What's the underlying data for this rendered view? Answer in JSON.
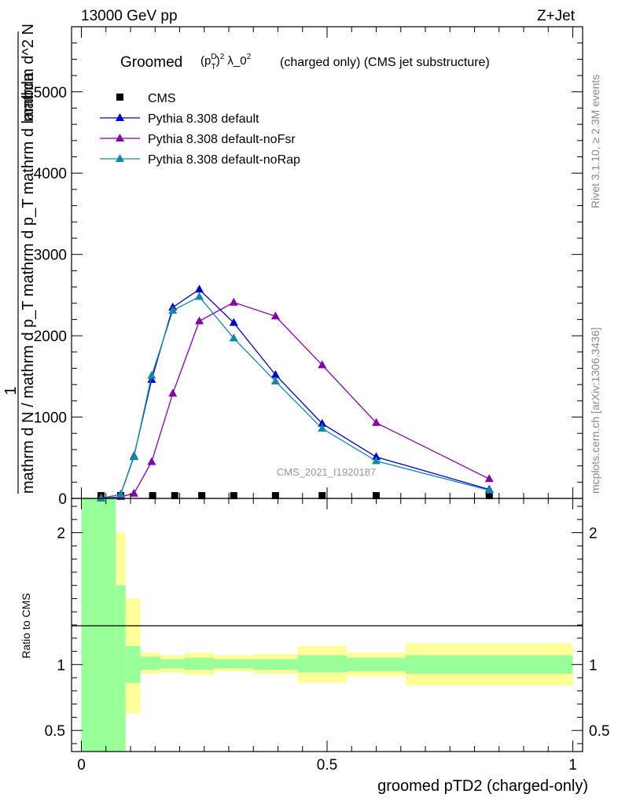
{
  "header": {
    "energy": "13000 GeV pp",
    "process": "Z+Jet"
  },
  "title": {
    "prefix": "Groomed",
    "suffix": "(charged only) (CMS jet substructure)"
  },
  "side_labels": {
    "rivet": "Rivet 3.1.10, ≥ 2.3M events",
    "mcplots": "mcplots.cern.ch [arXiv:1306.3436]"
  },
  "analysis_label": "CMS_2021_I1920187",
  "ylabel_main": {
    "numerator": "1",
    "denominator": "mathrm d N / mathrm d p_T mathrm d p_T mathrm d lambda",
    "top": "mathrm d^2 N"
  },
  "ylabel_ratio": "Ratio to CMS",
  "xlabel": "groomed pTD2 (charged-only)",
  "colors": {
    "cms": "#000000",
    "default": "#0000cc",
    "noFsr": "#8800aa",
    "noRap": "#1188aa",
    "band_inner": "#99ff99",
    "band_outer": "#ffff99"
  },
  "chart_data": [
    {
      "type": "line",
      "panel": "main",
      "ylim": [
        0,
        5800
      ],
      "xlim": [
        -0.02,
        1.02
      ],
      "yticks": [
        0,
        1000,
        2000,
        3000,
        4000,
        5000
      ],
      "yticklabels": [
        "0",
        "1000",
        "2000",
        "3000",
        "4000",
        "5000"
      ],
      "series": [
        {
          "name": "CMS",
          "marker": "square",
          "x": [
            0.04,
            0.08,
            0.145,
            0.19,
            0.245,
            0.31,
            0.395,
            0.49,
            0.6,
            0.83
          ],
          "y": [
            0,
            0,
            0,
            0,
            0,
            0,
            0,
            0,
            0,
            0
          ]
        },
        {
          "name": "Pythia 8.308 default",
          "marker": "triangle",
          "x": [
            0.04,
            0.08,
            0.107,
            0.143,
            0.186,
            0.24,
            0.31,
            0.395,
            0.49,
            0.6,
            0.83
          ],
          "y": [
            0,
            50,
            520,
            1460,
            2350,
            2570,
            2160,
            1520,
            920,
            510,
            110
          ]
        },
        {
          "name": "Pythia 8.308 default-noFsr",
          "marker": "triangle",
          "x": [
            0.04,
            0.08,
            0.107,
            0.143,
            0.186,
            0.24,
            0.31,
            0.395,
            0.49,
            0.6,
            0.83
          ],
          "y": [
            0,
            20,
            60,
            450,
            1290,
            2180,
            2410,
            2240,
            1640,
            930,
            240
          ]
        },
        {
          "name": "Pythia 8.308 default-noRap",
          "marker": "triangle",
          "x": [
            0.04,
            0.08,
            0.107,
            0.143,
            0.186,
            0.24,
            0.31,
            0.395,
            0.49,
            0.6,
            0.83
          ],
          "y": [
            0,
            50,
            510,
            1510,
            2310,
            2480,
            1970,
            1440,
            860,
            460,
            100
          ]
        }
      ]
    },
    {
      "type": "area",
      "panel": "ratio",
      "ylim": [
        0.34,
        2.26
      ],
      "yticks": [
        0.5,
        1,
        2
      ],
      "yticklabels": [
        "0.5",
        "1",
        "2"
      ],
      "xticks": [
        0,
        0.5,
        1
      ],
      "xticklabels": [
        "0",
        "0.5",
        "1"
      ],
      "bins": [
        {
          "x0": 0.0,
          "x1": 0.07,
          "inner": [
            0.34,
            2.26
          ],
          "outer": [
            0.34,
            2.26
          ]
        },
        {
          "x0": 0.07,
          "x1": 0.09,
          "inner": [
            0.34,
            1.6
          ],
          "outer": [
            0.34,
            2.0
          ]
        },
        {
          "x0": 0.09,
          "x1": 0.12,
          "inner": [
            0.86,
            1.14
          ],
          "outer": [
            0.63,
            1.5
          ]
        },
        {
          "x0": 0.12,
          "x1": 0.16,
          "inner": [
            0.96,
            1.06
          ],
          "outer": [
            0.93,
            1.09
          ]
        },
        {
          "x0": 0.16,
          "x1": 0.21,
          "inner": [
            0.97,
            1.04
          ],
          "outer": [
            0.94,
            1.07
          ]
        },
        {
          "x0": 0.21,
          "x1": 0.27,
          "inner": [
            0.96,
            1.05
          ],
          "outer": [
            0.92,
            1.09
          ]
        },
        {
          "x0": 0.27,
          "x1": 0.35,
          "inner": [
            0.97,
            1.04
          ],
          "outer": [
            0.95,
            1.07
          ]
        },
        {
          "x0": 0.35,
          "x1": 0.44,
          "inner": [
            0.96,
            1.04
          ],
          "outer": [
            0.93,
            1.08
          ]
        },
        {
          "x0": 0.44,
          "x1": 0.54,
          "inner": [
            0.94,
            1.07
          ],
          "outer": [
            0.86,
            1.14
          ]
        },
        {
          "x0": 0.54,
          "x1": 0.66,
          "inner": [
            0.95,
            1.05
          ],
          "outer": [
            0.91,
            1.09
          ]
        },
        {
          "x0": 0.66,
          "x1": 1.0,
          "inner": [
            0.93,
            1.07
          ],
          "outer": [
            0.84,
            1.16
          ]
        }
      ]
    }
  ]
}
